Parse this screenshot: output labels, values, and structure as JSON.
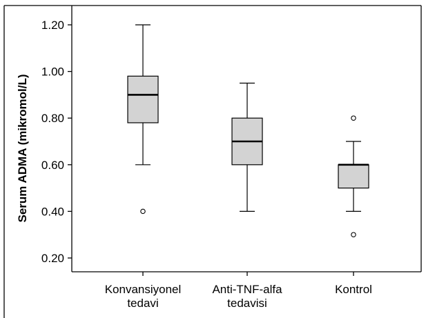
{
  "chart_data": {
    "type": "box",
    "ylabel": "Serum ADMA (mikromol/L)",
    "ylim": [
      0.15,
      1.25
    ],
    "yticks": [
      "0.20",
      "0.40",
      "0.60",
      "0.80",
      "1.00",
      "1.20"
    ],
    "categories": [
      {
        "lines": [
          "Konvansiyonel",
          "tedavi"
        ]
      },
      {
        "lines": [
          "Anti-TNF-alfa",
          "tedavisi"
        ]
      },
      {
        "lines": [
          "Kontrol"
        ]
      }
    ],
    "boxes": [
      {
        "min": 0.6,
        "q1": 0.78,
        "median": 0.9,
        "q3": 0.98,
        "max": 1.2,
        "outliers": [
          0.4
        ]
      },
      {
        "min": 0.4,
        "q1": 0.6,
        "median": 0.7,
        "q3": 0.8,
        "max": 0.95,
        "outliers": []
      },
      {
        "min": 0.4,
        "q1": 0.5,
        "median": 0.6,
        "q3": 0.6,
        "max": 0.7,
        "outliers": [
          0.8,
          0.3
        ]
      }
    ],
    "box_fill": "#d3d3d3",
    "grid": false
  }
}
